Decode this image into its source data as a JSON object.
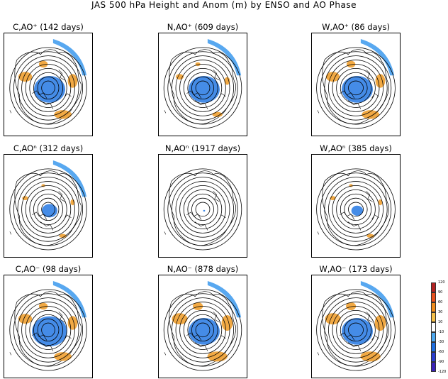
{
  "title": "JAS 500 hPa Height and Anom (m) by ENSO and AO Phase",
  "panels": [
    {
      "label": "C,AO⁺ (142 days)",
      "pos_anom": 0.7,
      "neg_anom": 0.8
    },
    {
      "label": "N,AO⁺ (609 days)",
      "pos_anom": 0.4,
      "neg_anom": 0.8
    },
    {
      "label": "W,AO⁺ (86 days)",
      "pos_anom": 0.7,
      "neg_anom": 0.8
    },
    {
      "label": "C,AOⁿ (312 days)",
      "pos_anom": 0.3,
      "neg_anom": 0.4
    },
    {
      "label": "N,AOⁿ (1917 days)",
      "pos_anom": 0.0,
      "neg_anom": 0.05
    },
    {
      "label": "W,AOⁿ (385 days)",
      "pos_anom": 0.3,
      "neg_anom": 0.3
    },
    {
      "label": "C,AO⁻ (98 days)",
      "pos_anom": 0.7,
      "neg_anom": 0.9
    },
    {
      "label": "N,AO⁻ (878 days)",
      "pos_anom": 0.8,
      "neg_anom": 0.8
    },
    {
      "label": "W,AO⁻ (173 days)",
      "pos_anom": 0.8,
      "neg_anom": 0.8
    }
  ],
  "colorbar": {
    "labels": [
      "120",
      "90",
      "60",
      "30",
      "10",
      "-10",
      "-30",
      "-60",
      "-90",
      "-120"
    ],
    "colors": [
      "#b22222",
      "#e8501e",
      "#f08c1e",
      "#f5c04a",
      "#ffffff",
      "#4ea8ee",
      "#1e6ee0",
      "#2a3ed0",
      "#3a22b8"
    ]
  }
}
